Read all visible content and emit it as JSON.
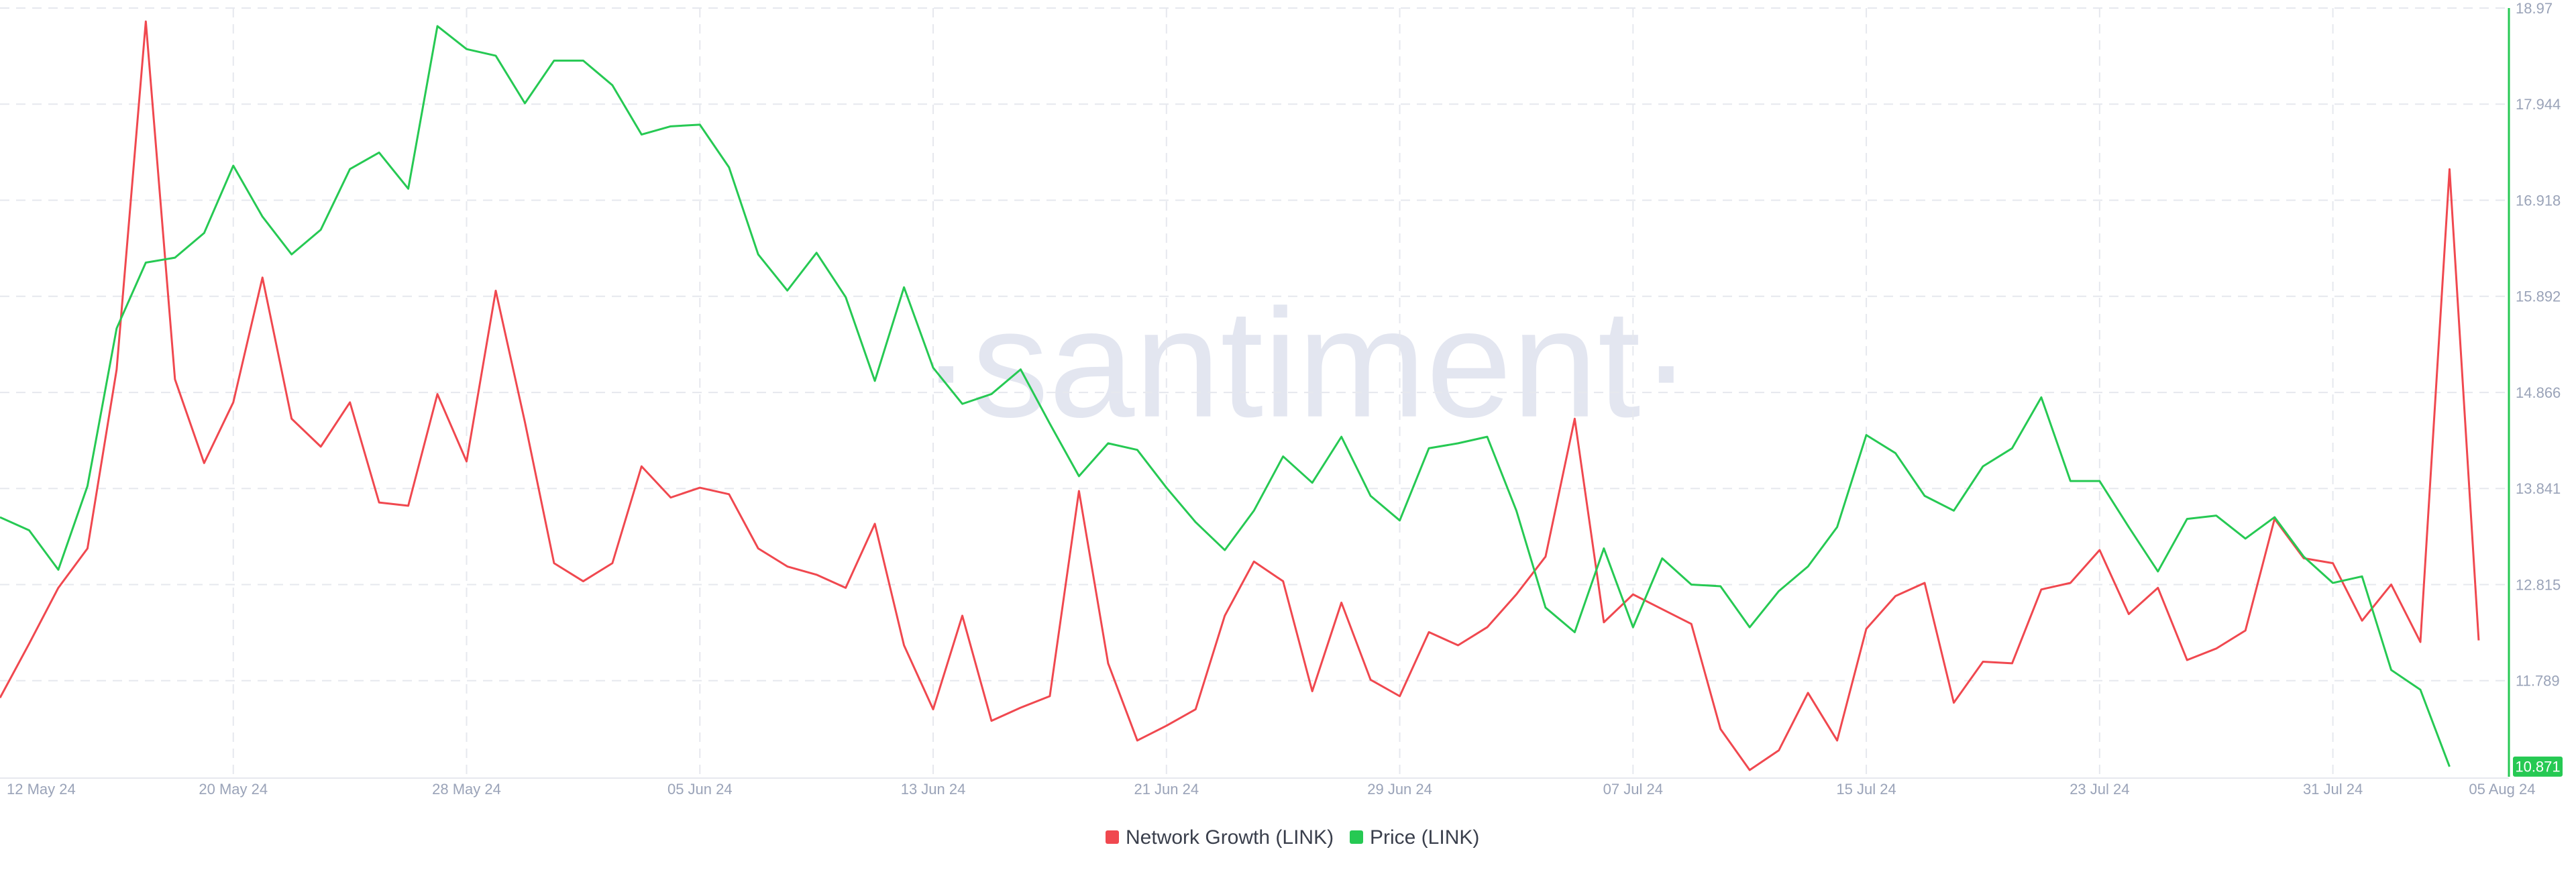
{
  "chart_data": {
    "type": "line",
    "watermark": "·santiment·",
    "categories": [
      "12 May 24",
      null,
      null,
      null,
      null,
      null,
      null,
      null,
      "20 May 24",
      null,
      null,
      null,
      null,
      null,
      null,
      null,
      "28 May 24",
      null,
      null,
      null,
      null,
      null,
      null,
      null,
      "05 Jun 24",
      null,
      null,
      null,
      null,
      null,
      null,
      null,
      "13 Jun 24",
      null,
      null,
      null,
      null,
      null,
      null,
      null,
      "21 Jun 24",
      null,
      null,
      null,
      null,
      null,
      null,
      null,
      "29 Jun 24",
      null,
      null,
      null,
      null,
      null,
      null,
      null,
      "07 Jul 24",
      null,
      null,
      null,
      null,
      null,
      null,
      null,
      "15 Jul 24",
      null,
      null,
      null,
      null,
      null,
      null,
      null,
      "23 Jul 24",
      null,
      null,
      null,
      null,
      null,
      null,
      null,
      "31 Jul 24",
      null,
      null,
      null,
      null,
      "05 Aug 24"
    ],
    "series": [
      {
        "name": "Network Growth (LINK)",
        "color": "#f0484f",
        "values": [
          48,
          81,
          115,
          139,
          248,
          460,
          242,
          191,
          228,
          304,
          218,
          201,
          228,
          167,
          165,
          233,
          192,
          296,
          216,
          130,
          119,
          130,
          189,
          170,
          176,
          172,
          139,
          128,
          123,
          115,
          154,
          80,
          41,
          98,
          34,
          42,
          49,
          174,
          69,
          22,
          31,
          41,
          98,
          131,
          119,
          52,
          106,
          59,
          49,
          88,
          80,
          91,
          111,
          134,
          218,
          94,
          111,
          102,
          93,
          29,
          4,
          16,
          51,
          22,
          90,
          110,
          118,
          45,
          70,
          69,
          114,
          118,
          138,
          99,
          115,
          71,
          78,
          89,
          157,
          133,
          130,
          95,
          117,
          82,
          370,
          83
        ]
      },
      {
        "name": "Price (LINK)",
        "color": "#26c953",
        "axis": "y2",
        "values": [
          13.534,
          13.394,
          12.973,
          13.867,
          15.55,
          16.252,
          16.305,
          16.568,
          17.287,
          16.743,
          16.34,
          16.603,
          17.251,
          17.427,
          17.041,
          18.777,
          18.532,
          18.461,
          17.953,
          18.409,
          18.409,
          18.146,
          17.62,
          17.707,
          17.725,
          17.269,
          16.34,
          15.954,
          16.357,
          15.884,
          14.989,
          15.989,
          15.13,
          14.744,
          14.849,
          15.112,
          14.533,
          13.972,
          14.323,
          14.253,
          13.849,
          13.481,
          13.183,
          13.604,
          14.183,
          13.902,
          14.393,
          13.762,
          13.499,
          14.27,
          14.323,
          14.393,
          13.604,
          12.569,
          12.306,
          13.201,
          12.359,
          13.095,
          12.815,
          12.797,
          12.359,
          12.745,
          13.008,
          13.429,
          14.411,
          14.218,
          13.762,
          13.604,
          14.077,
          14.27,
          14.814,
          13.92,
          13.92,
          13.429,
          12.955,
          13.516,
          13.551,
          13.306,
          13.534,
          13.113,
          12.832,
          12.902,
          11.903,
          11.692,
          10.871,
          null
        ]
      }
    ],
    "y2lim": [
      10.763,
      18.97
    ],
    "y2ticks": [
      11.789,
      12.815,
      13.841,
      14.866,
      15.892,
      16.918,
      17.944,
      18.97
    ],
    "last_value": 10.871,
    "grid": true
  }
}
